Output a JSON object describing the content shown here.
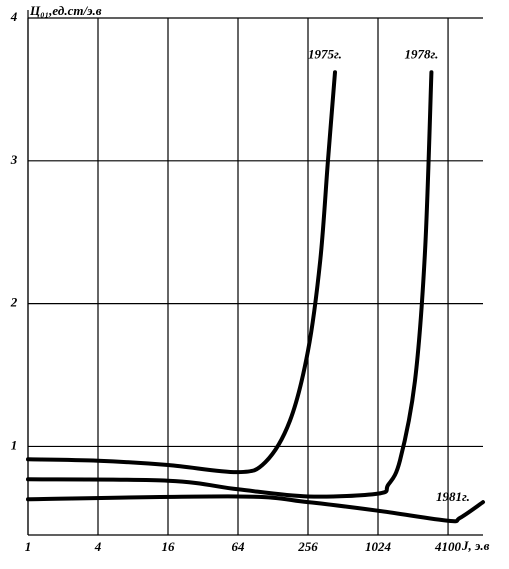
{
  "chart_data": {
    "type": "line",
    "y_label": "Ц₀₁,ед.ст/э.в",
    "x_label": "J, э.в",
    "x_log": true,
    "grid": true,
    "xlim": [
      1,
      8192
    ],
    "ylim": [
      0.38,
      4
    ],
    "xticks": [
      1,
      4,
      16,
      64,
      256,
      1024,
      4100
    ],
    "yticks": [
      1,
      2,
      3,
      4
    ],
    "series": [
      {
        "name": "1975г.",
        "color": "#000000",
        "x": [
          1,
          4,
          16,
          64,
          110,
          179,
          256,
          326,
          380,
          437
        ],
        "values": [
          0.91,
          0.9,
          0.87,
          0.82,
          0.89,
          1.18,
          1.67,
          2.3,
          3.0,
          3.62
        ]
      },
      {
        "name": "1978г.",
        "color": "#000000",
        "x": [
          1,
          16,
          64,
          256,
          1024,
          1250,
          1580,
          2130,
          2600,
          2950
        ],
        "values": [
          0.77,
          0.76,
          0.7,
          0.65,
          0.67,
          0.73,
          0.9,
          1.46,
          2.37,
          3.62
        ]
      },
      {
        "name": "1981г.",
        "color": "#000000",
        "x": [
          1,
          64,
          256,
          1024,
          4100,
          5200,
          8192
        ],
        "values": [
          0.63,
          0.65,
          0.61,
          0.55,
          0.48,
          0.5,
          0.61
        ]
      }
    ]
  }
}
